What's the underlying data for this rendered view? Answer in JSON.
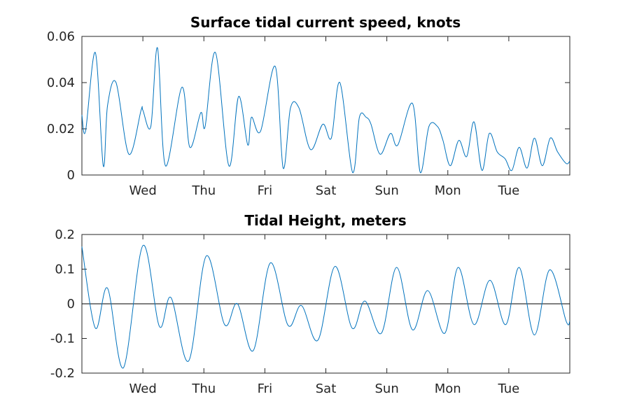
{
  "chart_data": [
    {
      "type": "line",
      "title": "Surface tidal current speed, knots",
      "xlabel": "",
      "ylabel": "",
      "x_ticks": [
        "Wed",
        "Thu",
        "Fri",
        "Sat",
        "Sun",
        "Mon",
        "Tue"
      ],
      "xlim": [
        0,
        8
      ],
      "ylim": [
        0,
        0.06
      ],
      "y_ticks": [
        "0",
        "0.02",
        "0.04",
        "0.06"
      ],
      "y_tick_values": [
        0,
        0.02,
        0.04,
        0.06
      ],
      "grid": false,
      "line_color": "#0072BD",
      "series": [
        {
          "x": [
            0.0,
            0.06,
            0.22,
            0.35,
            0.42,
            0.56,
            0.77,
            0.97,
            1.0,
            1.13,
            1.24,
            1.37,
            1.64,
            1.77,
            1.95,
            2.02,
            2.19,
            2.41,
            2.57,
            2.72,
            2.78,
            2.93,
            3.17,
            3.3,
            3.42,
            3.56,
            3.75,
            3.95,
            4.09,
            4.23,
            4.44,
            4.55,
            4.66,
            4.74,
            4.89,
            5.06,
            5.18,
            5.42,
            5.55,
            5.69,
            5.83,
            5.92,
            6.04,
            6.18,
            6.31,
            6.43,
            6.56,
            6.68,
            6.81,
            6.94,
            7.05,
            7.17,
            7.3,
            7.42,
            7.55,
            7.68,
            7.8,
            7.94,
            8.0
          ],
          "y": [
            0.026,
            0.019,
            0.053,
            0.004,
            0.03,
            0.04,
            0.009,
            0.028,
            0.028,
            0.021,
            0.055,
            0.004,
            0.038,
            0.012,
            0.027,
            0.021,
            0.053,
            0.004,
            0.034,
            0.013,
            0.025,
            0.019,
            0.047,
            0.003,
            0.029,
            0.029,
            0.011,
            0.022,
            0.016,
            0.04,
            0.001,
            0.025,
            0.025,
            0.022,
            0.009,
            0.018,
            0.013,
            0.031,
            0.001,
            0.021,
            0.021,
            0.015,
            0.004,
            0.015,
            0.008,
            0.023,
            0.002,
            0.018,
            0.01,
            0.007,
            0.002,
            0.012,
            0.003,
            0.016,
            0.004,
            0.016,
            0.01,
            0.005,
            0.006
          ]
        }
      ]
    },
    {
      "type": "line",
      "title": "Tidal Height, meters",
      "xlabel": "",
      "ylabel": "",
      "x_ticks": [
        "Wed",
        "Thu",
        "Fri",
        "Sat",
        "Sun",
        "Mon",
        "Tue"
      ],
      "xlim": [
        0,
        8
      ],
      "ylim": [
        -0.2,
        0.2
      ],
      "y_ticks": [
        "-0.2",
        "-0.1",
        "0",
        "0.1",
        "0.2"
      ],
      "y_tick_values": [
        -0.2,
        -0.1,
        0,
        0.1,
        0.2
      ],
      "reference_line": 0,
      "grid": false,
      "line_color": "#0072BD",
      "series": [
        {
          "x": [
            0.0,
            0.22,
            0.42,
            0.68,
            1.0,
            1.27,
            1.46,
            1.75,
            2.04,
            2.34,
            2.55,
            2.81,
            3.09,
            3.38,
            3.6,
            3.87,
            4.15,
            4.43,
            4.64,
            4.91,
            5.16,
            5.42,
            5.67,
            5.95,
            6.17,
            6.43,
            6.69,
            6.95,
            7.17,
            7.42,
            7.67,
            7.94,
            8.0
          ],
          "y": [
            0.165,
            -0.07,
            0.045,
            -0.185,
            0.168,
            -0.065,
            0.018,
            -0.165,
            0.138,
            -0.06,
            0.0,
            -0.135,
            0.118,
            -0.062,
            -0.005,
            -0.105,
            0.108,
            -0.07,
            0.008,
            -0.085,
            0.105,
            -0.075,
            0.038,
            -0.085,
            0.105,
            -0.06,
            0.068,
            -0.06,
            0.105,
            -0.09,
            0.098,
            -0.05,
            -0.05
          ]
        }
      ]
    }
  ]
}
